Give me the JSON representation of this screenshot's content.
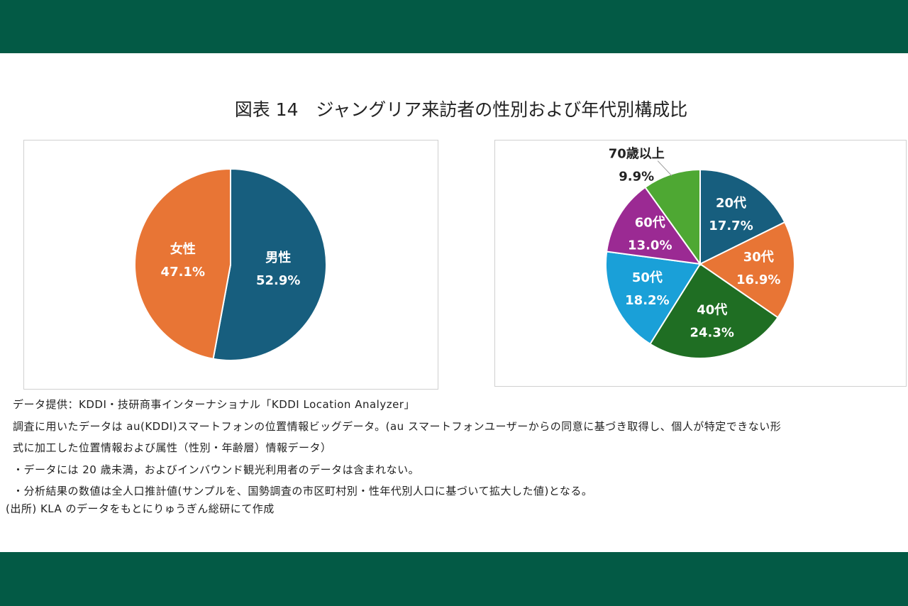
{
  "title": "図表 14　ジャングリア来訪者の性別および年代別構成比",
  "chart_data": [
    {
      "type": "pie",
      "categories": [
        "男性",
        "女性"
      ],
      "values": [
        52.9,
        47.1
      ],
      "value_labels": [
        "52.9%",
        "47.1%"
      ],
      "colors": [
        "#175e7e",
        "#e87535"
      ]
    },
    {
      "type": "pie",
      "categories": [
        "20代",
        "30代",
        "40代",
        "50代",
        "60代",
        "70歳以上"
      ],
      "values": [
        17.7,
        16.9,
        24.3,
        18.2,
        13.0,
        9.9
      ],
      "value_labels": [
        "17.7%",
        "16.9%",
        "24.3%",
        "18.2%",
        "13.0%",
        "9.9%"
      ],
      "colors": [
        "#175e7e",
        "#e87535",
        "#1f6e23",
        "#1aa0d8",
        "#9b2a93",
        "#4ea833"
      ]
    }
  ],
  "notes": [
    "データ提供：KDDI・技研商事インターナショナル「KDDI Location Analyzer」",
    "調査に用いたデータは au(KDDI)スマートフォンの位置情報ビッグデータ。(au スマートフォンユーザーからの同意に基づき取得し、個人が特定できない形",
    "式に加工した位置情報および属性（性別・年齢層）情報データ）",
    "・データには 20 歳未満，およびインバウンド観光利用者のデータは含まれない。",
    "・分析結果の数値は全人口推計値(サンプルを、国勢調査の市区町村別・性年代別人口に基づいて拡大した値)となる。",
    "(出所) KLA のデータをもとにりゅうぎん総研にて作成"
  ]
}
